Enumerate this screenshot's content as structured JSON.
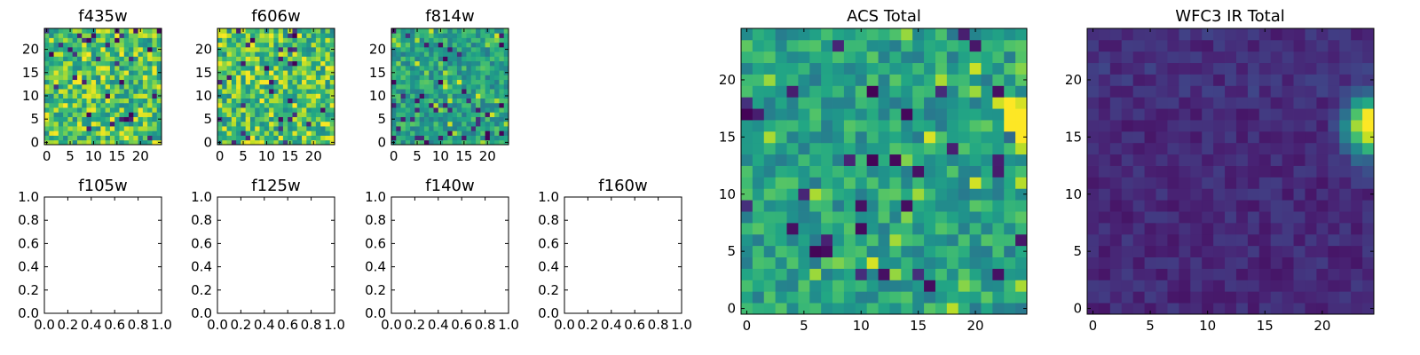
{
  "chart_data": [
    {
      "id": "f435w",
      "type": "heatmap",
      "title": "f435w",
      "grid": [
        25,
        25
      ],
      "colormap": "viridis",
      "xticks": [
        "0",
        "5",
        "10",
        "15",
        "20"
      ],
      "yticks": [
        "0",
        "5",
        "10",
        "15",
        "20"
      ],
      "profile": "noise-bright"
    },
    {
      "id": "f606w",
      "type": "heatmap",
      "title": "f606w",
      "grid": [
        25,
        25
      ],
      "colormap": "viridis",
      "xticks": [
        "0",
        "5",
        "10",
        "15",
        "20"
      ],
      "yticks": [
        "0",
        "5",
        "10",
        "15",
        "20"
      ],
      "profile": "noise-bright"
    },
    {
      "id": "f814w",
      "type": "heatmap",
      "title": "f814w",
      "grid": [
        25,
        25
      ],
      "colormap": "viridis",
      "xticks": [
        "0",
        "5",
        "10",
        "15",
        "20"
      ],
      "yticks": [
        "0",
        "5",
        "10",
        "15",
        "20"
      ],
      "profile": "noise-mid-source"
    },
    {
      "id": "f105w",
      "type": "empty",
      "title": "f105w",
      "xlim": [
        0,
        1
      ],
      "ylim": [
        0,
        1
      ],
      "xticks": [
        "0.0",
        "0.2",
        "0.4",
        "0.6",
        "0.8",
        "1.0"
      ],
      "yticks": [
        "0.0",
        "0.2",
        "0.4",
        "0.6",
        "0.8",
        "1.0"
      ]
    },
    {
      "id": "f125w",
      "type": "empty",
      "title": "f125w",
      "xlim": [
        0,
        1
      ],
      "ylim": [
        0,
        1
      ],
      "xticks": [
        "0.0",
        "0.2",
        "0.4",
        "0.6",
        "0.8",
        "1.0"
      ],
      "yticks": [
        "0.0",
        "0.2",
        "0.4",
        "0.6",
        "0.8",
        "1.0"
      ]
    },
    {
      "id": "f140w",
      "type": "empty",
      "title": "f140w",
      "xlim": [
        0,
        1
      ],
      "ylim": [
        0,
        1
      ],
      "xticks": [
        "0.0",
        "0.2",
        "0.4",
        "0.6",
        "0.8",
        "1.0"
      ],
      "yticks": [
        "0.0",
        "0.2",
        "0.4",
        "0.6",
        "0.8",
        "1.0"
      ]
    },
    {
      "id": "f160w",
      "type": "empty",
      "title": "f160w",
      "xlim": [
        0,
        1
      ],
      "ylim": [
        0,
        1
      ],
      "xticks": [
        "0.0",
        "0.2",
        "0.4",
        "0.6",
        "0.8",
        "1.0"
      ],
      "yticks": [
        "0.0",
        "0.2",
        "0.4",
        "0.6",
        "0.8",
        "1.0"
      ]
    },
    {
      "id": "acs-total",
      "type": "heatmap",
      "title": "ACS Total",
      "grid": [
        25,
        25
      ],
      "colormap": "viridis",
      "xticks": [
        "0",
        "5",
        "10",
        "15",
        "20"
      ],
      "yticks": [
        "0",
        "5",
        "10",
        "15",
        "20"
      ],
      "profile": "noise-mid-source",
      "bright_source": {
        "x": 24,
        "y": 16
      }
    },
    {
      "id": "wfc3-ir-total",
      "type": "heatmap",
      "title": "WFC3 IR Total",
      "grid": [
        25,
        25
      ],
      "colormap": "viridis",
      "xticks": [
        "0",
        "5",
        "10",
        "15",
        "20"
      ],
      "yticks": [
        "0",
        "5",
        "10",
        "15",
        "20"
      ],
      "profile": "smooth-dark-source",
      "bright_source": {
        "x": 24,
        "y": 16
      }
    }
  ]
}
